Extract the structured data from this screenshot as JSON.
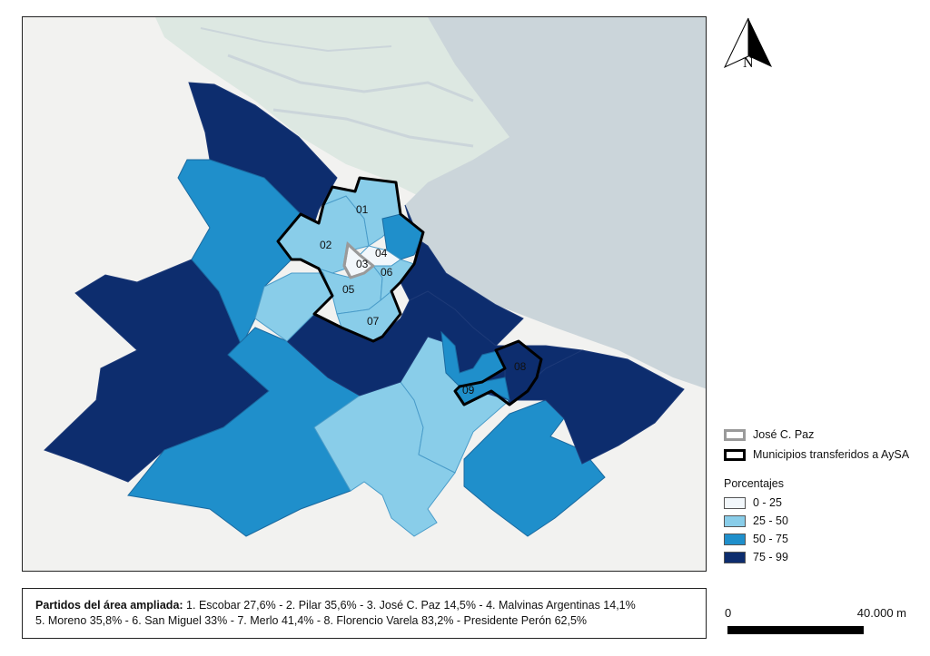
{
  "map": {
    "municipality_labels": [
      "01",
      "02",
      "03",
      "04",
      "05",
      "06",
      "07",
      "08",
      "09"
    ],
    "colors": {
      "land": "#f2f2f0",
      "water": "#cbd5da",
      "green_area": "#dde8e2",
      "class_0_25": "#f2f7fb",
      "class_25_50": "#89cde9",
      "class_50_75": "#1f8fcb",
      "class_75_99": "#0d2d6e",
      "outline_jose_c_paz": "#9a9a9a",
      "outline_aysa": "#000000"
    }
  },
  "north_arrow": {
    "letter": "N"
  },
  "legend": {
    "jose_c_paz_label": "José C. Paz",
    "aysa_label": "Municipios transferidos a AySA",
    "title": "Porcentajes",
    "ranges": [
      "0 - 25",
      "25 - 50",
      "50 - 75",
      "75 - 99"
    ]
  },
  "caption": {
    "bold": "Partidos del área ampliada:",
    "line1": "1. Escobar 27,6% - 2. Pilar 35,6% - 3. José C. Paz 14,5% - 4. Malvinas Argentinas 14,1%",
    "line2": "5. Moreno 35,8% - 6. San Miguel 33% - 7. Merlo 41,4% - 8. Florencio Varela 83,2% - Presidente Perón 62,5%"
  },
  "scale": {
    "start": "0",
    "end": "40.000 m"
  }
}
